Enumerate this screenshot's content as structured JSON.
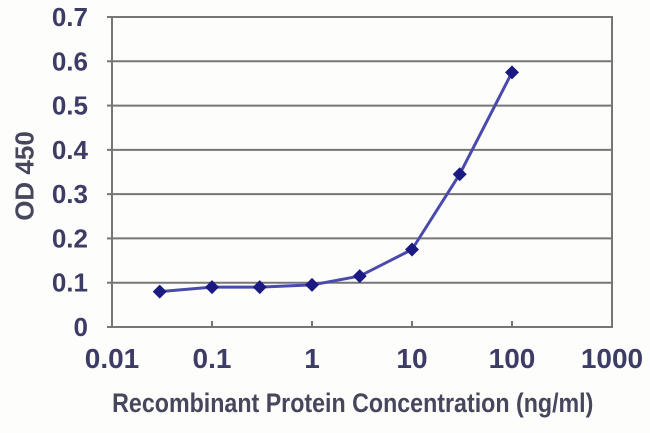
{
  "chart_data": {
    "type": "line",
    "title": "",
    "xlabel": "Recombinant Protein Concentration (ng/ml)",
    "ylabel": "OD 450",
    "x_scale": "log",
    "xlim": [
      0.01,
      1000
    ],
    "ylim": [
      0,
      0.7
    ],
    "x_ticks": [
      0.01,
      0.1,
      1,
      10,
      100,
      1000
    ],
    "x_tick_labels": [
      "0.01",
      "0.1",
      "1",
      "10",
      "100",
      "1000"
    ],
    "y_ticks": [
      0,
      0.1,
      0.2,
      0.3,
      0.4,
      0.5,
      0.6,
      0.7
    ],
    "y_tick_labels": [
      "0",
      "0.1",
      "0.2",
      "0.3",
      "0.4",
      "0.5",
      "0.6",
      "0.7"
    ],
    "grid": "horizontal",
    "legend": "none",
    "series": [
      {
        "marker": "diamond",
        "x": [
          0.03,
          0.1,
          0.3,
          1,
          3,
          10,
          30,
          100
        ],
        "y": [
          0.08,
          0.09,
          0.09,
          0.095,
          0.115,
          0.175,
          0.345,
          0.575
        ]
      }
    ],
    "colors": {
      "line": "#4a4aac",
      "marker": "#1a1a82",
      "grid": "#767676",
      "axis": "#767676",
      "tick_label": "#3c3c66",
      "axis_title": "#46465c",
      "background": "#fdfdfc"
    }
  }
}
